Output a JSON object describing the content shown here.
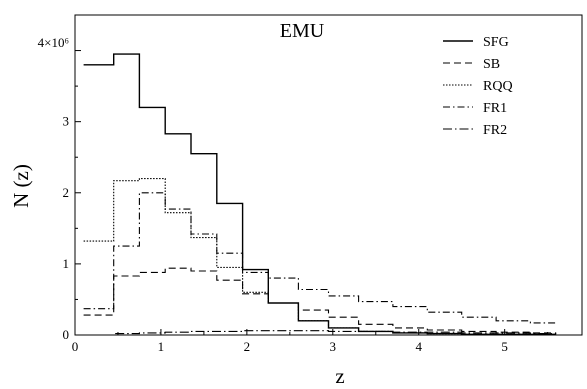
{
  "chart_data": {
    "type": "line",
    "title": "EMU",
    "xlabel": "z",
    "ylabel": "N (z)",
    "xlim": [
      0,
      5.9
    ],
    "ylim": [
      0,
      4.5
    ],
    "y_multiplier_label": "4×10⁶",
    "x_ticks": [
      0,
      1,
      2,
      3,
      4,
      5
    ],
    "y_ticks": [
      0,
      1,
      2,
      3
    ],
    "y_top_tick": 4,
    "grid": false,
    "legend_position": "top-right",
    "bin_edges": [
      0.1,
      0.45,
      0.75,
      1.05,
      1.35,
      1.65,
      1.95,
      2.25,
      2.6,
      2.95,
      3.3,
      3.7,
      4.1,
      4.5,
      4.9,
      5.3,
      5.6
    ],
    "series": [
      {
        "name": "SFG",
        "dash": "",
        "values": [
          3.8,
          3.95,
          3.2,
          2.83,
          2.55,
          1.85,
          0.92,
          0.45,
          0.2,
          0.1,
          0.05,
          0.03,
          0.02,
          0.01,
          0.01,
          0.01
        ]
      },
      {
        "name": "SB",
        "dash": "7,4",
        "values": [
          0.28,
          0.83,
          0.88,
          0.94,
          0.9,
          0.77,
          0.58,
          0.45,
          0.35,
          0.25,
          0.15,
          0.1,
          0.07,
          0.05,
          0.04,
          0.03
        ]
      },
      {
        "name": "RQQ",
        "dash": "1.5,1.5",
        "values": [
          1.32,
          2.17,
          2.2,
          1.72,
          1.37,
          0.95,
          0.6,
          0.45,
          0.2,
          0.1,
          0.05,
          0.03,
          0.02,
          0.01,
          0.01,
          0.0
        ]
      },
      {
        "name": "FR1",
        "dash": "7,3,1.5,3",
        "values": [
          0.37,
          1.25,
          2.0,
          1.77,
          1.42,
          1.15,
          0.88,
          0.8,
          0.64,
          0.55,
          0.47,
          0.4,
          0.32,
          0.25,
          0.2,
          0.17
        ]
      },
      {
        "name": "FR2",
        "dash": "9,3,1.5,3",
        "values": [
          0.0,
          0.02,
          0.03,
          0.04,
          0.05,
          0.05,
          0.06,
          0.06,
          0.06,
          0.05,
          0.05,
          0.04,
          0.04,
          0.03,
          0.03,
          0.02
        ]
      }
    ]
  }
}
